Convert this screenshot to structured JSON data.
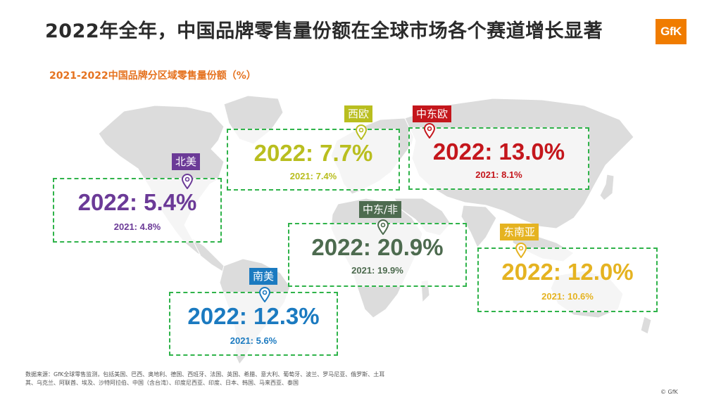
{
  "title": "2022年全年，中国品牌零售量份额在全球市场各个赛道增长显著",
  "logo_text": "GfK",
  "subtitle": "2021-2022中国品牌分区域零售量份额（%）",
  "colors": {
    "box_border": "#2fb34a",
    "north_america": "#6b3a97",
    "south_america": "#1b7ac0",
    "western_europe": "#b9be1f",
    "central_eastern_europe": "#c4161c",
    "middle_east_africa": "#4d6b4f",
    "southeast_asia": "#e5b321",
    "map_land": "#dcdcdc"
  },
  "regions": {
    "north_america": {
      "tag": "北美",
      "value_2022": "2022: 5.4%",
      "value_2021": "2021: 4.8%"
    },
    "western_europe": {
      "tag": "西欧",
      "value_2022": "2022: 7.7%",
      "value_2021": "2021: 7.4%"
    },
    "central_eastern_europe": {
      "tag": "中东欧",
      "value_2022": "2022: 13.0%",
      "value_2021": "2021: 8.1%"
    },
    "middle_east_africa": {
      "tag": "中东/非",
      "value_2022": "2022: 20.9%",
      "value_2021": "2021: 19.9%"
    },
    "southeast_asia": {
      "tag": "东南亚",
      "value_2022": "2022: 12.0%",
      "value_2021": "2021: 10.6%"
    },
    "south_america": {
      "tag": "南美",
      "value_2022": "2022: 12.3%",
      "value_2021": "2021: 5.6%"
    }
  },
  "footnote": "数据来源：GfK全球零售监测，包括美国、巴西、奥地利、德国、西班牙、法国、英国、希腊、意大利、葡萄牙、波兰、罗马尼亚、俄罗斯、土耳其、乌克兰、阿联酋、埃及、沙特阿拉伯、中国（含台湾）、印度尼西亚、印度、日本、韩国、马来西亚、泰国",
  "copyright": "© GfK"
}
